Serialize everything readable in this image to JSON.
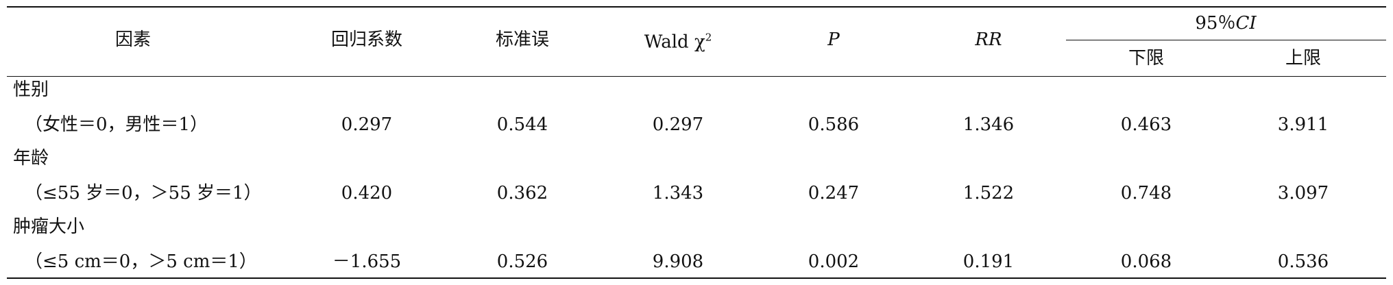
{
  "table": {
    "headers": [
      "因素",
      "回归系数",
      "标准误",
      {
        "text": "Wald χ",
        "sup": "2"
      },
      {
        "italic": "P"
      },
      {
        "italic": "RR"
      },
      {
        "text": "95％",
        "italic": "CI"
      }
    ],
    "subheaders": [
      "下限",
      "上限"
    ],
    "rows": [
      {
        "label": "性别",
        "sub": "（女性＝0，男性＝1）",
        "values": [
          "0.297",
          "0.544",
          "0.297",
          "0.586",
          "1.346",
          "0.463",
          "3.911"
        ]
      },
      {
        "label": "年龄",
        "sub": "（≤55 岁＝0，＞55 岁＝1）",
        "values": [
          "0.420",
          "0.362",
          "1.343",
          "0.247",
          "1.522",
          "0.748",
          "3.097"
        ]
      },
      {
        "label": "肿瘤大小",
        "sub": "（≤5 cm＝0，＞5 cm＝1）",
        "values": [
          "－1.655",
          "0.526",
          "9.908",
          "0.002",
          "0.191",
          "0.068",
          "0.536"
        ]
      }
    ]
  }
}
